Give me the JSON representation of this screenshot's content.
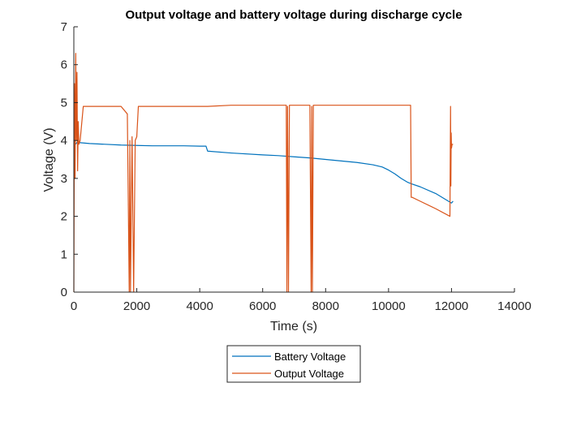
{
  "chart_data": {
    "type": "line",
    "title": "Output voltage and battery voltage during discharge cycle",
    "xlabel": "Time (s)",
    "ylabel": "Voltage (V)",
    "xlim": [
      0,
      14000
    ],
    "ylim": [
      0,
      7
    ],
    "xticks": [
      0,
      2000,
      4000,
      6000,
      8000,
      10000,
      12000,
      14000
    ],
    "xtick_labels": [
      "0",
      "2000",
      "4000",
      "6000",
      "8000",
      "10000",
      "12000",
      "14000"
    ],
    "yticks": [
      0,
      1,
      2,
      3,
      4,
      5,
      6,
      7
    ],
    "ytick_labels": [
      "0",
      "1",
      "2",
      "3",
      "4",
      "5",
      "6",
      "7"
    ],
    "grid": false,
    "legend_placement": "bottom-center-outside",
    "series": [
      {
        "name": "Battery Voltage",
        "color": "#0072bd",
        "x": [
          0,
          100,
          500,
          1000,
          1500,
          2000,
          2500,
          3000,
          3500,
          4000,
          4200,
          4250,
          5000,
          6000,
          6500,
          7000,
          7500,
          8000,
          8500,
          9000,
          9500,
          9800,
          10000,
          10200,
          10400,
          10600,
          10750,
          11000,
          11500,
          12000,
          12050
        ],
        "y": [
          3.85,
          3.95,
          3.92,
          3.9,
          3.88,
          3.87,
          3.86,
          3.86,
          3.86,
          3.85,
          3.85,
          3.72,
          3.67,
          3.62,
          3.6,
          3.57,
          3.54,
          3.5,
          3.46,
          3.42,
          3.36,
          3.3,
          3.22,
          3.12,
          3.0,
          2.9,
          2.85,
          2.78,
          2.6,
          2.35,
          2.4
        ]
      },
      {
        "name": "Output Voltage",
        "color": "#d95319",
        "x": [
          0,
          20,
          40,
          60,
          80,
          100,
          120,
          140,
          160,
          200,
          300,
          1500,
          1700,
          1760,
          1780,
          1800,
          1850,
          1900,
          1950,
          2000,
          2050,
          2100,
          3000,
          4150,
          4200,
          4250,
          5000,
          6000,
          6750,
          6770,
          6790,
          6820,
          6850,
          7000,
          7500,
          7540,
          7560,
          7580,
          7610,
          7700,
          9000,
          10000,
          10700,
          10720,
          10750,
          11000,
          11500,
          11950,
          11970,
          11980,
          11990,
          12000,
          12020,
          12050
        ],
        "y": [
          0.0,
          5.5,
          3.0,
          6.3,
          4.0,
          5.8,
          3.2,
          4.5,
          3.9,
          4.0,
          4.9,
          4.9,
          4.7,
          0.0,
          4.0,
          0.0,
          4.1,
          0.0,
          4.0,
          4.1,
          4.9,
          4.9,
          4.9,
          4.9,
          4.9,
          4.9,
          4.93,
          4.93,
          4.93,
          0.0,
          4.9,
          0.0,
          4.93,
          4.93,
          4.93,
          0.0,
          4.9,
          0.0,
          4.93,
          4.93,
          4.93,
          4.93,
          4.93,
          2.5,
          2.5,
          2.4,
          2.2,
          2.0,
          4.9,
          2.8,
          4.2,
          3.8,
          3.9,
          3.9
        ]
      }
    ]
  }
}
